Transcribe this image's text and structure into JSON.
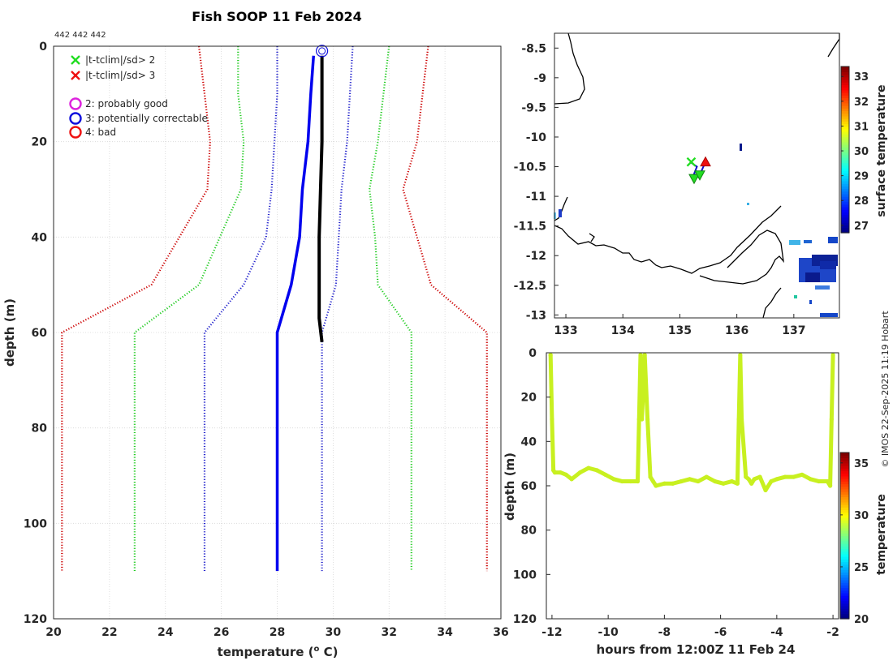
{
  "header": {
    "title": "Fish SOOP 11 Feb 2024",
    "ids": "442 442 442"
  },
  "credit": "© IMOS 22-Sep-2025 11:19 Hobart",
  "legend": [
    {
      "marker": "x",
      "color": "#22dd22",
      "label": "|t-tclim|/sd> 2"
    },
    {
      "marker": "x",
      "color": "#ee1111",
      "label": "|t-tclim|/sd> 3"
    },
    {
      "marker": "o",
      "color": "#dd22dd",
      "label": "2: probably good"
    },
    {
      "marker": "o",
      "color": "#1111dd",
      "label": "3: potentially correctable"
    },
    {
      "marker": "o",
      "color": "#ee1111",
      "label": "4: bad"
    }
  ],
  "chart_data": [
    {
      "id": "profile",
      "type": "line",
      "xlabel": "temperature (o C)",
      "ylabel": "depth (m)",
      "xlim": [
        20,
        36
      ],
      "ylim": [
        0,
        120
      ],
      "xticks": [
        20,
        22,
        24,
        26,
        28,
        30,
        32,
        34,
        36
      ],
      "yticks": [
        0,
        20,
        40,
        60,
        80,
        100,
        120
      ],
      "grid": true,
      "series": [
        {
          "name": "climatology -3sd",
          "color": "#cc0000",
          "style": "dotted",
          "x": [
            25.2,
            25.4,
            25.6,
            25.5,
            23.5,
            20.3,
            20.3
          ],
          "y": [
            0,
            10,
            20,
            30,
            50,
            60,
            110
          ]
        },
        {
          "name": "climatology +3sd",
          "color": "#cc0000",
          "style": "dotted",
          "x": [
            33.4,
            33.2,
            33.0,
            32.5,
            33.0,
            33.5,
            35.5,
            35.5
          ],
          "y": [
            0,
            10,
            20,
            30,
            40,
            50,
            60,
            110
          ]
        },
        {
          "name": "climatology -2sd",
          "color": "#22cc22",
          "style": "dotted",
          "x": [
            26.6,
            26.6,
            26.8,
            26.7,
            25.2,
            22.9,
            22.9
          ],
          "y": [
            0,
            10,
            20,
            30,
            50,
            60,
            110
          ]
        },
        {
          "name": "climatology +2sd",
          "color": "#22cc22",
          "style": "dotted",
          "x": [
            32.0,
            31.8,
            31.6,
            31.3,
            31.5,
            31.6,
            32.8,
            32.8
          ],
          "y": [
            0,
            10,
            20,
            30,
            40,
            50,
            60,
            110
          ]
        },
        {
          "name": "climatology -1sd",
          "color": "#2222cc",
          "style": "dotted",
          "x": [
            28.0,
            28.0,
            27.9,
            27.8,
            27.6,
            26.8,
            25.4,
            25.4
          ],
          "y": [
            0,
            10,
            20,
            30,
            40,
            50,
            60,
            110
          ]
        },
        {
          "name": "climatology +1sd",
          "color": "#2222cc",
          "style": "dotted",
          "x": [
            30.7,
            30.6,
            30.5,
            30.3,
            30.2,
            30.1,
            29.6,
            29.6
          ],
          "y": [
            0,
            10,
            20,
            30,
            40,
            50,
            60,
            110
          ]
        },
        {
          "name": "flagged profile (3)",
          "color": "#0000ee",
          "style": "solid",
          "x": [
            29.3,
            29.2,
            29.1,
            28.9,
            28.8,
            28.5,
            28.0,
            28.0
          ],
          "y": [
            2,
            10,
            20,
            30,
            40,
            50,
            60,
            110
          ]
        },
        {
          "name": "measured profile",
          "color": "#000000",
          "style": "solid",
          "x": [
            29.6,
            29.6,
            29.6,
            29.5,
            29.5,
            29.6
          ],
          "y": [
            2,
            10,
            20,
            40,
            57,
            62
          ]
        }
      ],
      "markers": [
        {
          "type": "circle",
          "color": "#1111dd",
          "x": 29.6,
          "y": 1
        }
      ]
    },
    {
      "id": "map",
      "type": "scatter",
      "xlim": [
        132.8,
        137.8
      ],
      "ylim": [
        -13.05,
        -8.25
      ],
      "xticks": [
        133,
        134,
        135,
        136,
        137
      ],
      "yticks": [
        -8.5,
        -9,
        -9.5,
        -10,
        -10.5,
        -11,
        -11.5,
        -12,
        -12.5,
        -13
      ],
      "colorbar": {
        "label": "surface temperature",
        "min": 26.7,
        "max": 33.4,
        "ticks": [
          27,
          28,
          29,
          30,
          31,
          32,
          33
        ]
      },
      "track": [
        {
          "lon": 135.18,
          "lat": -10.42
        },
        {
          "lon": 135.3,
          "lat": -10.5
        },
        {
          "lon": 135.25,
          "lat": -10.62
        },
        {
          "lon": 135.33,
          "lat": -10.68
        },
        {
          "lon": 135.45,
          "lat": -10.42
        }
      ],
      "markers": [
        {
          "shape": "x",
          "color": "#22dd22",
          "lon": 135.2,
          "lat": -10.42
        },
        {
          "shape": "triangle-up",
          "color": "#ee1111",
          "lon": 135.45,
          "lat": -10.42
        },
        {
          "shape": "triangle-down",
          "color": "#22dd22",
          "lon": 135.25,
          "lat": -10.7
        },
        {
          "shape": "triangle-down",
          "color": "#22dd22",
          "lon": 135.35,
          "lat": -10.64
        }
      ]
    },
    {
      "id": "timeseries",
      "type": "scatter",
      "xlabel": "hours from 12:00Z 11 Feb 24",
      "ylabel": "depth (m)",
      "xlim": [
        -12.2,
        -1.8
      ],
      "ylim": [
        0,
        120
      ],
      "xticks": [
        -12,
        -10,
        -8,
        -6,
        -4,
        -2
      ],
      "yticks": [
        0,
        20,
        40,
        60,
        80,
        100,
        120
      ],
      "colorbar": {
        "label": "temperature",
        "min": 20,
        "max": 36,
        "ticks": [
          20,
          25,
          30,
          35
        ]
      },
      "color": "#c8f020",
      "x": [
        -12.05,
        -12.0,
        -11.95,
        -11.9,
        -11.7,
        -11.5,
        -11.3,
        -11.0,
        -10.7,
        -10.4,
        -10.1,
        -9.8,
        -9.5,
        -9.2,
        -8.95,
        -8.9,
        -8.85,
        -8.8,
        -8.7,
        -8.6,
        -8.5,
        -8.4,
        -8.3,
        -8.0,
        -7.7,
        -7.4,
        -7.1,
        -6.8,
        -6.5,
        -6.2,
        -5.9,
        -5.6,
        -5.4,
        -5.35,
        -5.3,
        -5.25,
        -5.1,
        -5.0,
        -4.9,
        -4.8,
        -4.6,
        -4.4,
        -4.2,
        -4.0,
        -3.7,
        -3.4,
        -3.1,
        -2.8,
        -2.5,
        -2.2,
        -2.1,
        -2.05,
        -2.0
      ],
      "y": [
        1,
        30,
        53,
        54,
        54,
        55,
        57,
        54,
        52,
        53,
        55,
        57,
        58,
        58,
        58,
        30,
        1,
        30,
        1,
        30,
        56,
        58,
        60,
        59,
        59,
        58,
        57,
        58,
        56,
        58,
        59,
        58,
        59,
        30,
        1,
        30,
        56,
        57,
        59,
        57,
        56,
        62,
        58,
        57,
        56,
        56,
        55,
        57,
        58,
        58,
        60,
        30,
        1
      ]
    }
  ]
}
